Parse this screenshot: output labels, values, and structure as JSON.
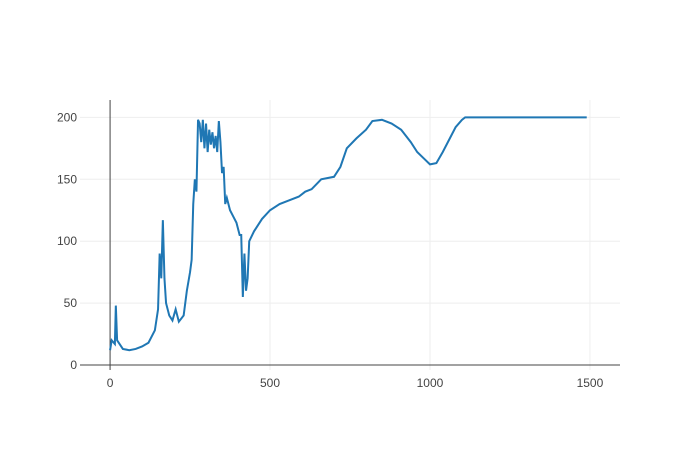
{
  "chart_data": {
    "type": "line",
    "x": [
      0,
      5,
      15,
      18,
      22,
      40,
      60,
      80,
      100,
      120,
      140,
      150,
      155,
      160,
      165,
      170,
      175,
      185,
      195,
      205,
      215,
      230,
      240,
      250,
      255,
      260,
      265,
      270,
      275,
      280,
      285,
      290,
      295,
      300,
      305,
      310,
      315,
      320,
      325,
      330,
      335,
      340,
      345,
      350,
      355,
      360,
      365,
      375,
      385,
      395,
      405,
      410,
      415,
      420,
      425,
      430,
      435,
      450,
      475,
      500,
      530,
      560,
      590,
      610,
      630,
      660,
      700,
      720,
      740,
      770,
      800,
      820,
      850,
      880,
      910,
      940,
      960,
      980,
      1000,
      1020,
      1040,
      1060,
      1080,
      1100,
      1110,
      1200,
      1300,
      1400,
      1490
    ],
    "series": [
      {
        "color": "#1f77b4",
        "values": [
          12,
          20,
          17,
          48,
          20,
          13,
          12,
          13,
          15,
          18,
          28,
          45,
          90,
          70,
          117,
          70,
          50,
          40,
          36,
          45,
          35,
          40,
          60,
          75,
          85,
          130,
          150,
          140,
          198,
          195,
          180,
          198,
          175,
          195,
          172,
          190,
          178,
          188,
          175,
          185,
          172,
          197,
          180,
          155,
          160,
          130,
          135,
          125,
          120,
          115,
          105,
          105,
          55,
          90,
          60,
          70,
          100,
          108,
          118,
          125,
          130,
          133,
          136,
          140,
          142,
          150,
          152,
          160,
          175,
          183,
          190,
          197,
          198,
          195,
          190,
          180,
          172,
          167,
          162,
          163,
          172,
          182,
          192,
          198,
          200,
          200,
          200,
          200,
          200
        ]
      }
    ],
    "xlim": [
      -94,
      1594
    ],
    "ylim": [
      -4,
      214
    ],
    "xticks": [
      0,
      500,
      1000,
      1500
    ],
    "yticks": [
      0,
      50,
      100,
      150,
      200
    ],
    "grid": true
  }
}
